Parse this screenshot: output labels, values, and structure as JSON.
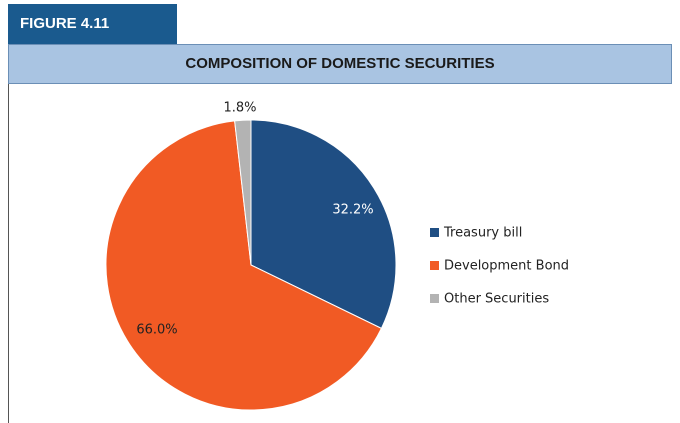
{
  "header": {
    "figure_label": "FIGURE 4.11",
    "title": "COMPOSITION OF DOMESTIC SECURITIES"
  },
  "chart_data": {
    "type": "pie",
    "title": "COMPOSITION OF DOMESTIC SECURITIES",
    "series": [
      {
        "name": "Treasury bill",
        "value": 32.2,
        "label": "32.2%",
        "color": "#1f4e83"
      },
      {
        "name": "Development Bond",
        "value": 66.0,
        "label": "66.0%",
        "color": "#f15a24"
      },
      {
        "name": "Other Securities",
        "value": 1.8,
        "label": "1.8%",
        "color": "#b3b3b3"
      }
    ],
    "legend_position": "right"
  }
}
